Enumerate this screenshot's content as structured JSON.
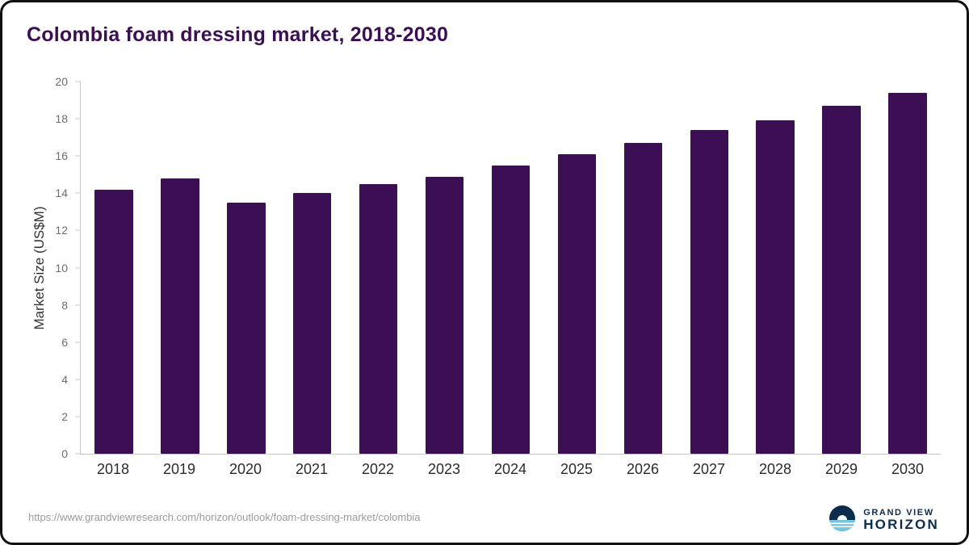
{
  "title": "Colombia foam dressing market, 2018-2030",
  "chart_data": {
    "type": "bar",
    "categories": [
      "2018",
      "2019",
      "2020",
      "2021",
      "2022",
      "2023",
      "2024",
      "2025",
      "2026",
      "2027",
      "2028",
      "2029",
      "2030"
    ],
    "values": [
      14.2,
      14.8,
      13.5,
      14.0,
      14.5,
      14.9,
      15.5,
      16.1,
      16.7,
      17.4,
      17.9,
      18.7,
      19.4
    ],
    "title": "Colombia foam dressing market, 2018-2030",
    "xlabel": "",
    "ylabel": "Market Size (US$M)",
    "ylim": [
      0,
      20
    ],
    "ytick_step": 2,
    "bar_color": "#3c0f54",
    "grid": false,
    "legend": false
  },
  "footer": {
    "source_url": "https://www.grandviewresearch.com/horizon/outlook/foam-dressing-market/colombia",
    "logo": {
      "line1": "GRAND VIEW",
      "line2": "HORIZON",
      "icon": "horizon-sun-icon"
    }
  },
  "colors": {
    "title_text": "#3b1053",
    "bar": "#3c0f54",
    "axis_line": "#c9c9c9",
    "y_tick_label": "#6e6e6e",
    "x_tick_label": "#2b2b2b",
    "url_text": "#9b9b9b",
    "logo_navy": "#0d2b4b",
    "logo_light_blue": "#6fc7e1"
  }
}
